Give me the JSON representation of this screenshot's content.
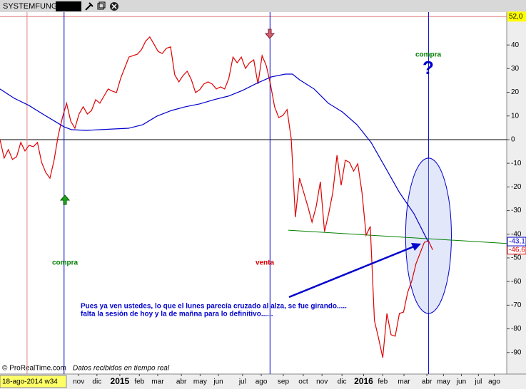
{
  "header": {
    "title": "SYSTEMFUNGI"
  },
  "footer": {
    "credit": "© ProRealTime.com",
    "status": "Datos recibidos en tiempo real",
    "cursor_date": "18-ago-2014 w34"
  },
  "chart_data": {
    "type": "line",
    "xlim": [
      0,
      121.8
    ],
    "ylim": [
      -99.1,
      53.9
    ],
    "yticks": [
      40,
      30,
      20,
      10,
      0,
      -10,
      -20,
      -30,
      -40,
      -50,
      -60,
      -70,
      -80,
      -90
    ],
    "xticks": [
      {
        "value": 18.9,
        "label": "nov"
      },
      {
        "value": 23.3,
        "label": "dic"
      },
      {
        "value": 28.8,
        "label": "2015"
      },
      {
        "value": 33.5,
        "label": "feb"
      },
      {
        "value": 37.9,
        "label": "mar"
      },
      {
        "value": 43.6,
        "label": "abr"
      },
      {
        "value": 48.1,
        "label": "may"
      },
      {
        "value": 52.5,
        "label": "jun"
      },
      {
        "value": 58.3,
        "label": "jul"
      },
      {
        "value": 62.8,
        "label": "ago"
      },
      {
        "value": 68.1,
        "label": "sep"
      },
      {
        "value": 72.9,
        "label": "oct"
      },
      {
        "value": 77.4,
        "label": "nov"
      },
      {
        "value": 82.2,
        "label": "dic"
      },
      {
        "value": 87.4,
        "label": "2016"
      },
      {
        "value": 92,
        "label": "feb"
      },
      {
        "value": 97.1,
        "label": "mar"
      },
      {
        "value": 102.6,
        "label": "abr"
      },
      {
        "value": 106.6,
        "label": "may"
      },
      {
        "value": 110.9,
        "label": "jun"
      },
      {
        "value": 115,
        "label": "jul"
      },
      {
        "value": 118.8,
        "label": "ago"
      }
    ],
    "series": [
      {
        "color": "#e00000",
        "last_label": "-46,6",
        "x": [
          0,
          1,
          2,
          3,
          4,
          5,
          6,
          7,
          8,
          9,
          10,
          11,
          12,
          13,
          14,
          15,
          16,
          17,
          18,
          19,
          20,
          21,
          22,
          23,
          24,
          25,
          26,
          27,
          28,
          29,
          30,
          31,
          32,
          33,
          34,
          35,
          36,
          37,
          38,
          39,
          40,
          41,
          42,
          43,
          44,
          45,
          46,
          47,
          48,
          49,
          50,
          51,
          52,
          53,
          54,
          55,
          56,
          57,
          58,
          59,
          60,
          61,
          62,
          63,
          64,
          65,
          66,
          67,
          68,
          69,
          70,
          71,
          72,
          73,
          74,
          75,
          76,
          77,
          78,
          79,
          80,
          81,
          82,
          83,
          84,
          85,
          86,
          87,
          88,
          89,
          90,
          91,
          92,
          93,
          94,
          95,
          96,
          97,
          98,
          99,
          100,
          101,
          102,
          103,
          104
        ],
        "values": [
          0,
          -7.8,
          -4.2,
          -8.4,
          -7.2,
          -1.2,
          -4.8,
          -2.4,
          -3,
          -1.2,
          -9.6,
          -13.9,
          -16.3,
          -8.7,
          1.8,
          9.3,
          15.4,
          7.8,
          4.8,
          10.8,
          13.9,
          10.8,
          12.3,
          16.9,
          15.4,
          18.4,
          21.4,
          20.5,
          19.9,
          25.9,
          30.4,
          34.9,
          35.5,
          36.1,
          38,
          41.6,
          43.4,
          40.4,
          37.3,
          36.4,
          38.6,
          39.2,
          27.4,
          24.4,
          27.1,
          28.9,
          25.3,
          19.9,
          21.1,
          23.5,
          24.4,
          23.5,
          21.4,
          22.3,
          21.4,
          25.9,
          34.9,
          32.5,
          34.9,
          30.1,
          32.5,
          33.7,
          23.5,
          35.5,
          31.3,
          23.5,
          13.9,
          9.3,
          10.2,
          12.7,
          0.3,
          -32.8,
          -16.3,
          -22.3,
          -28.3,
          -34.9,
          -28.3,
          -17.8,
          -38.9,
          -31.3,
          -22.3,
          -6.6,
          -19.3,
          -8.7,
          -9.6,
          -13.3,
          -10.2,
          -22.3,
          -40.4,
          -36.7,
          -76.5,
          -84,
          -92.2,
          -73.5,
          -82.5,
          -83.1,
          -73.5,
          -72.9,
          -64.5,
          -59.6,
          -52.4,
          -47.9,
          -43.4,
          -42.8,
          -46.6
        ]
      },
      {
        "color": "#0000cc",
        "last_label": "-43,1",
        "x": [
          0,
          3.4,
          6.9,
          10.3,
          13.7,
          15.4,
          17.2,
          20.6,
          24,
          27.4,
          30.9,
          34.3,
          37.7,
          41.2,
          44.6,
          48,
          51.5,
          54.9,
          58.3,
          61.7,
          65.2,
          68.6,
          70.3,
          72,
          75.5,
          78.9,
          82.3,
          85.8,
          89.2,
          92.6,
          96,
          99.5,
          102.9
        ],
        "values": [
          21.4,
          17.5,
          14.5,
          10.8,
          7.2,
          5.4,
          4.2,
          3.9,
          4.2,
          4.5,
          4.8,
          6.3,
          9.9,
          12.3,
          13.9,
          15.1,
          16.9,
          18.4,
          20.8,
          23.8,
          26.5,
          27.7,
          27.7,
          25.3,
          21.4,
          15.4,
          11.7,
          6.3,
          -1.2,
          -11.7,
          -22.3,
          -31.3,
          -43.1
        ]
      }
    ],
    "reference_line": {
      "value": 52,
      "label": "52,0",
      "color": "#e08080"
    },
    "zero_line": {
      "value": 0,
      "color": "#000000"
    },
    "vlines": [
      {
        "x": 15.4,
        "color": "#0000cc"
      },
      {
        "x": 64.9,
        "color": "#0000cc"
      },
      {
        "x": 103,
        "color": "#0000cc"
      },
      {
        "x": 6.5,
        "color": "#e08080"
      }
    ],
    "trendline": {
      "x": [
        69.3,
        121.8
      ],
      "y": [
        -38.3,
        -43.9
      ],
      "color": "#008000"
    },
    "ellipse": {
      "cx": 103,
      "cy": -40.65,
      "rx": 5.5,
      "ry": 32.85,
      "color": "#0000cc"
    },
    "annotations": [
      "compra",
      "venta",
      "compra",
      "?"
    ],
    "note": [
      "Pues ya ven ustedes, lo que el lunes parecía cruzado al alza, se fue girando.....",
      "falta la sesión de hoy y la de mañna para lo definitivo......"
    ]
  }
}
